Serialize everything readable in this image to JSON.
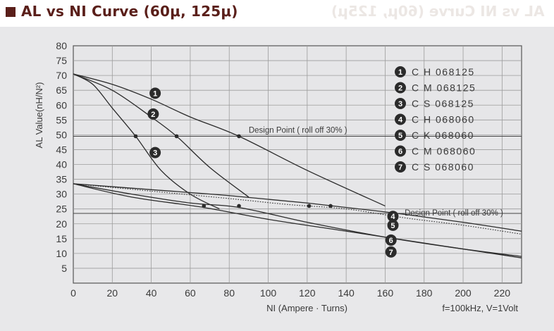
{
  "header": {
    "title": "AL vs NI Curve (60μ, 125μ)",
    "ghost": "AL vs NI Curve (60μ, 125μ)"
  },
  "chart_data": {
    "type": "line",
    "xlabel": "NI (Ampere · Turns)",
    "ylabel": "AL Value(nH/N²)",
    "note": "f=100kHz, V=1Volt",
    "xlim": [
      0,
      230
    ],
    "ylim": [
      0,
      80
    ],
    "x_ticks": [
      0,
      20,
      40,
      60,
      80,
      100,
      120,
      140,
      160,
      180,
      200,
      220
    ],
    "y_ticks": [
      5,
      10,
      15,
      20,
      25,
      30,
      35,
      40,
      45,
      50,
      55,
      60,
      65,
      70,
      75,
      80
    ],
    "grid": true,
    "legend_position": "top-right",
    "design_lines": [
      {
        "y": 49.5,
        "label": "Design Point ( roll off 30% )"
      },
      {
        "y": 23.5,
        "label": "Design Point ( roll off 30% )"
      }
    ],
    "series": [
      {
        "name": "C H 068125",
        "marker": "1",
        "dotted": false,
        "x": [
          0,
          20,
          40,
          60,
          85,
          120,
          160
        ],
        "y": [
          70.5,
          67,
          62,
          56,
          49.5,
          38,
          26
        ]
      },
      {
        "name": "C M 068125",
        "marker": "2",
        "dotted": false,
        "x": [
          0,
          20,
          40,
          53,
          70,
          90
        ],
        "y": [
          70.5,
          65,
          56,
          49.5,
          39,
          29
        ]
      },
      {
        "name": "C S 068125",
        "marker": "3",
        "dotted": false,
        "x": [
          0,
          10,
          20,
          32,
          45,
          60,
          75
        ],
        "y": [
          70.5,
          67,
          59,
          49.5,
          38,
          30,
          25
        ]
      },
      {
        "name": "C H 068060",
        "marker": "4",
        "dotted": false,
        "x": [
          0,
          40,
          80,
          120,
          160,
          200,
          230
        ],
        "y": [
          33.5,
          31.5,
          29.5,
          27,
          24,
          20.5,
          17.5
        ]
      },
      {
        "name": "C K 068060",
        "marker": "5",
        "dotted": true,
        "x": [
          0,
          40,
          80,
          110,
          140,
          170,
          200,
          230
        ],
        "y": [
          33.5,
          31,
          28.5,
          26.5,
          25,
          22,
          19.5,
          16.5
        ]
      },
      {
        "name": "C M 068060",
        "marker": "6",
        "dotted": false,
        "x": [
          0,
          30,
          60,
          85,
          120,
          160,
          200,
          230
        ],
        "y": [
          33.5,
          30,
          27,
          25.5,
          20.5,
          15.5,
          11.5,
          9
        ]
      },
      {
        "name": "C S 068060",
        "marker": "7",
        "dotted": false,
        "x": [
          0,
          30,
          67,
          100,
          140,
          180,
          230
        ],
        "y": [
          33.5,
          29,
          25.5,
          21.5,
          17.5,
          13.5,
          8.5
        ]
      }
    ],
    "design_points": [
      {
        "x": 85,
        "y": 49.5
      },
      {
        "x": 53,
        "y": 49.5
      },
      {
        "x": 32,
        "y": 49.5
      },
      {
        "x": 67,
        "y": 26
      },
      {
        "x": 85,
        "y": 26
      },
      {
        "x": 121,
        "y": 26
      },
      {
        "x": 132,
        "y": 26
      }
    ],
    "curve_markers": [
      {
        "label": "1",
        "x": 42,
        "y": 64
      },
      {
        "label": "2",
        "x": 41,
        "y": 57
      },
      {
        "label": "3",
        "x": 42,
        "y": 44
      },
      {
        "label": "4",
        "x": 164,
        "y": 22.5
      },
      {
        "label": "5",
        "x": 164,
        "y": 19.5
      },
      {
        "label": "6",
        "x": 163,
        "y": 14.5
      },
      {
        "label": "7",
        "x": 163,
        "y": 10.5
      }
    ]
  }
}
